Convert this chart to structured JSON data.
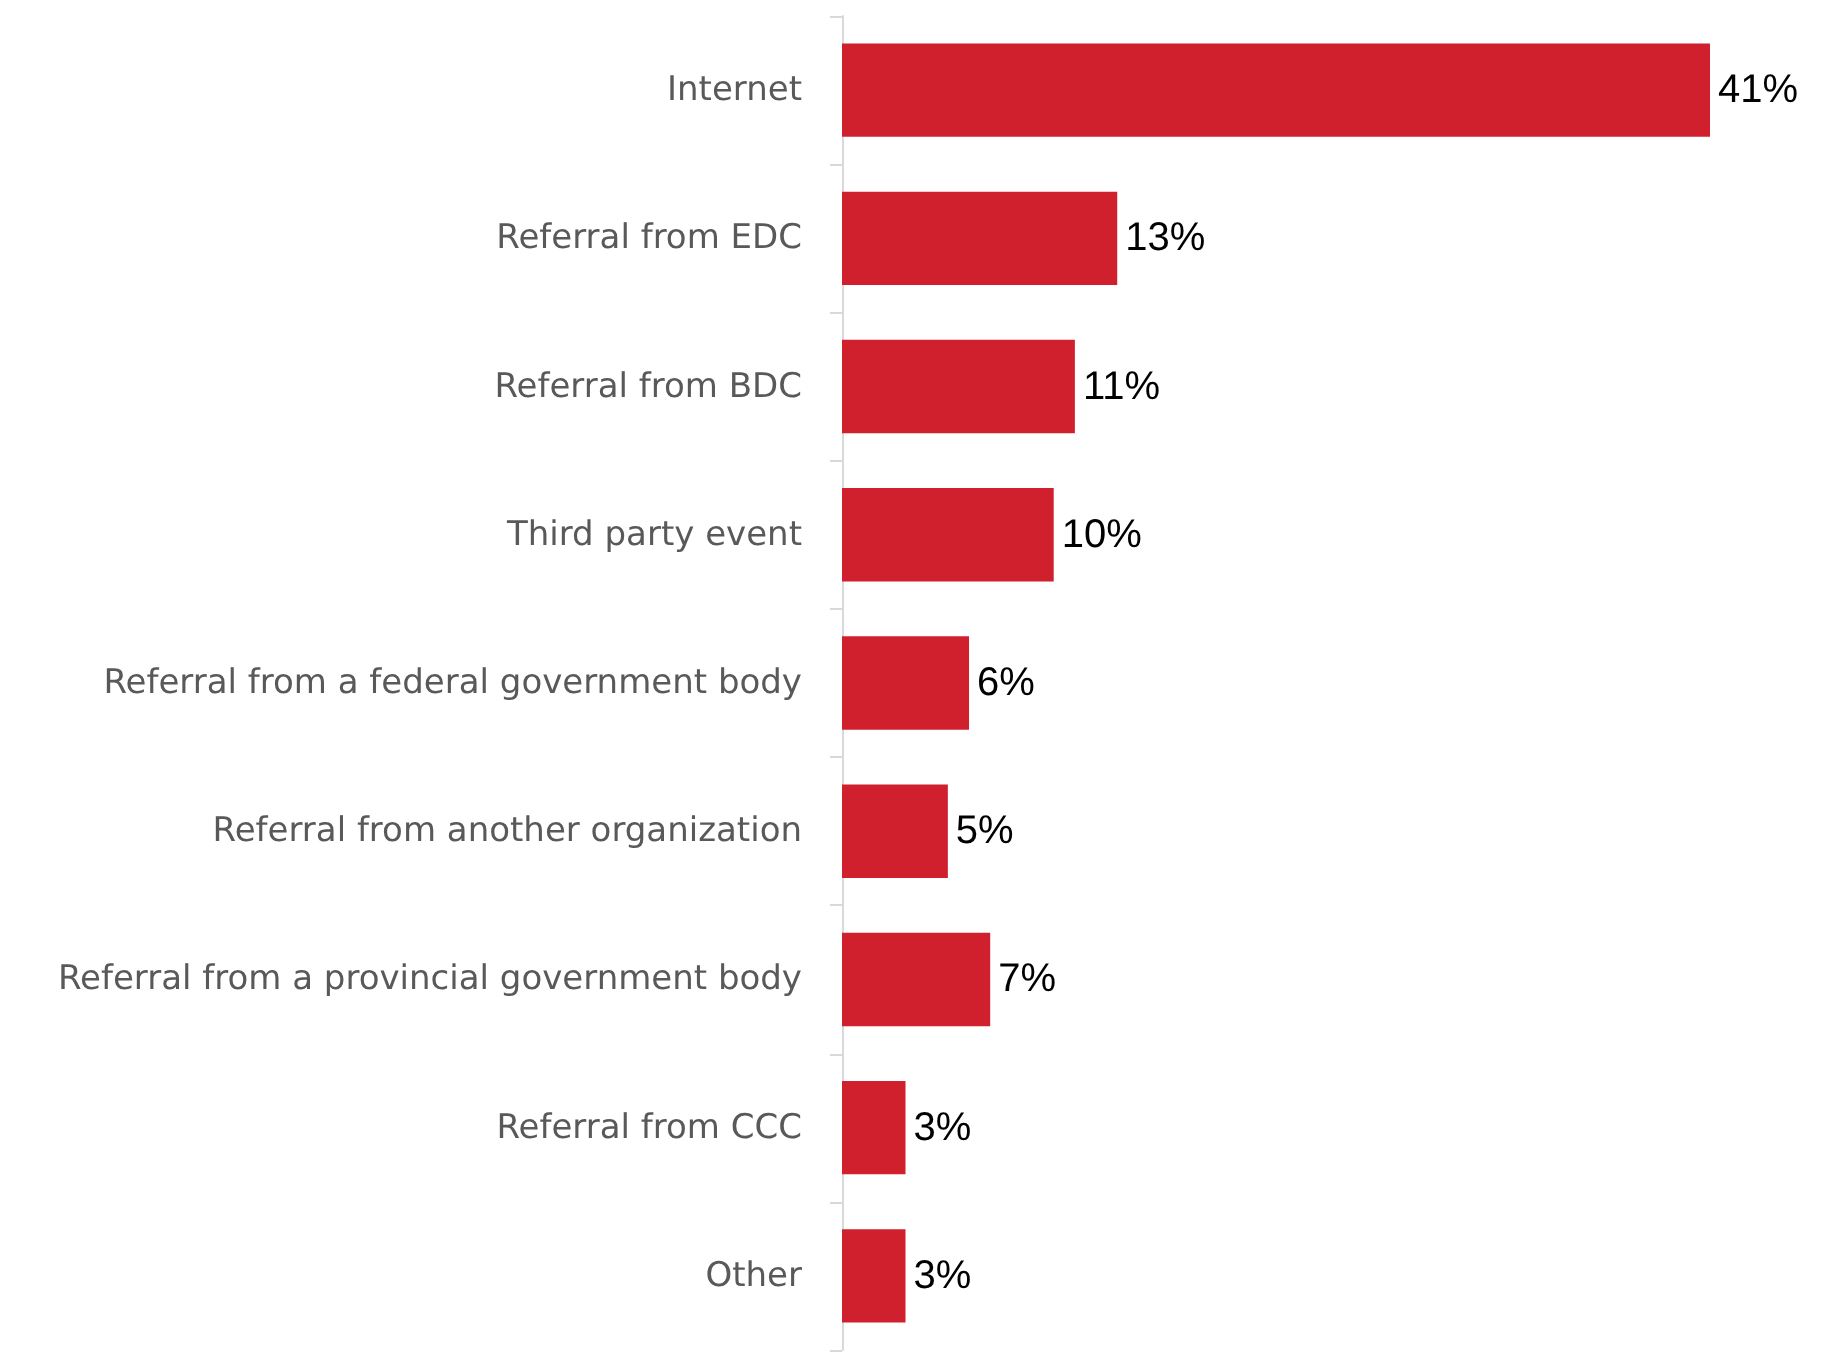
{
  "chart_data": {
    "type": "bar",
    "orientation": "horizontal",
    "categories": [
      "Internet",
      "Referral from EDC",
      "Referral from BDC",
      "Third party event",
      "Referral from a federal government body",
      "Referral from another organization",
      "Referral from a provincial government body",
      "Referral from CCC",
      "Other"
    ],
    "values": [
      41,
      13,
      11,
      10,
      6,
      5,
      7,
      3,
      3
    ],
    "value_labels": [
      "41%",
      "13%",
      "11%",
      "10%",
      "6%",
      "5%",
      "7%",
      "3%",
      "3%"
    ],
    "color": "#d0202e"
  }
}
